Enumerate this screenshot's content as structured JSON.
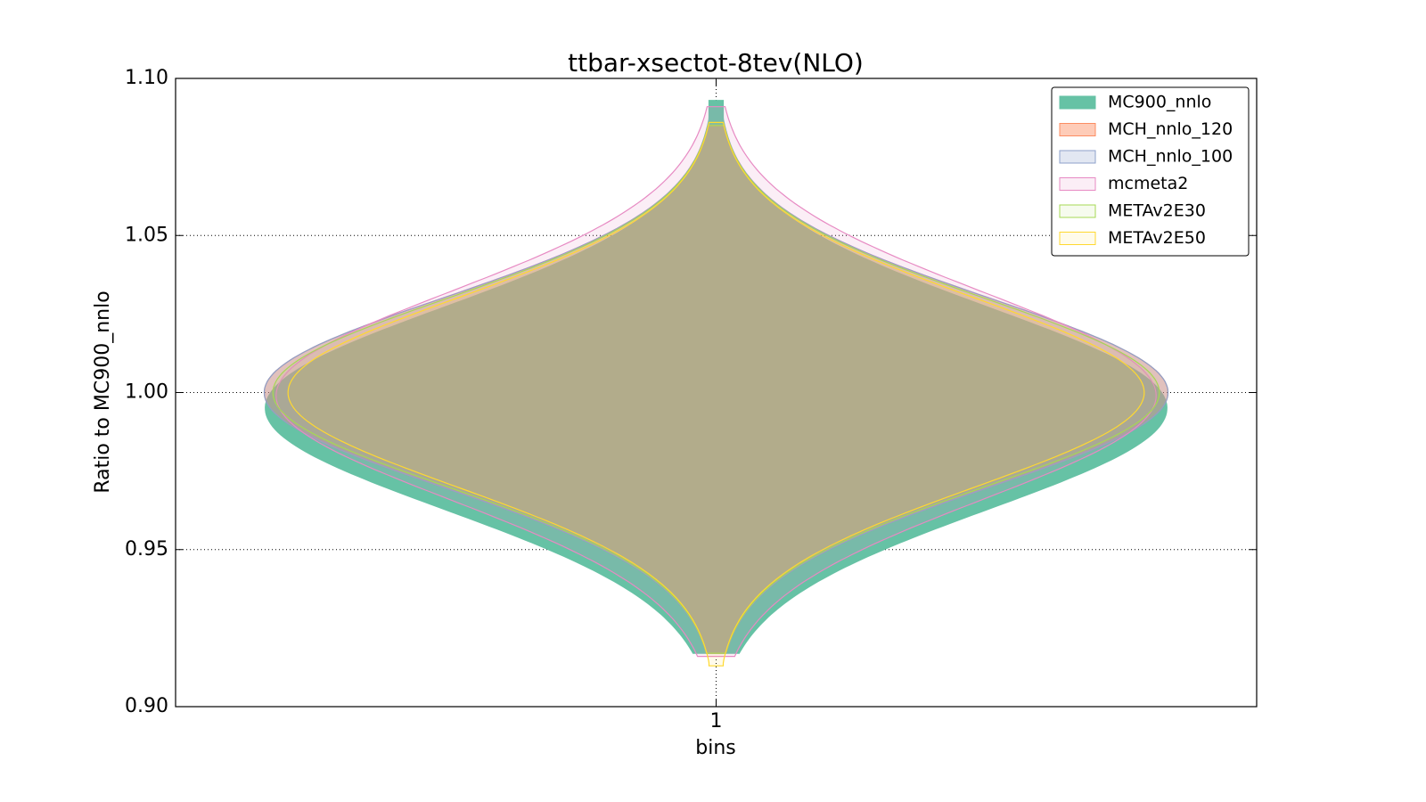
{
  "chart_data": {
    "type": "violin",
    "title": "ttbar-xsectot-8tev(NLO)",
    "x_label": "bins",
    "y_label": "Ratio to MC900_nnlo",
    "x": [
      1
    ],
    "xlim": [
      0.5,
      1.5
    ],
    "xticks": [
      1
    ],
    "ylim": [
      0.9,
      1.1
    ],
    "yticks": [
      {
        "value": 0.9,
        "label": "0.90"
      },
      {
        "value": 0.95,
        "label": "0.95"
      },
      {
        "value": 1.0,
        "label": "1.00"
      },
      {
        "value": 1.05,
        "label": "1.05"
      },
      {
        "value": 1.1,
        "label": "1.10"
      }
    ],
    "grid": true,
    "legend": "upper right",
    "series": [
      {
        "name": "MC900_nnlo",
        "color": "#66c2a5",
        "alpha": 1,
        "center": 0.995,
        "min": 0.917,
        "max": 1.093,
        "halfwidth": 0.417,
        "sd": 0.032
      },
      {
        "name": "MCH_nnlo_120",
        "color": "#fc8d62",
        "alpha": 0.45,
        "center": 1.0,
        "min": 0.917,
        "max": 1.085,
        "halfwidth": 0.418,
        "sd": 0.03
      },
      {
        "name": "MCH_nnlo_100",
        "color": "#8da0cb",
        "alpha": 0.25,
        "center": 1.0,
        "min": 0.917,
        "max": 1.085,
        "halfwidth": 0.418,
        "sd": 0.03
      },
      {
        "name": "mcmeta2",
        "color": "#e78ac3",
        "alpha": 0.15,
        "center": 0.999,
        "min": 0.916,
        "max": 1.091,
        "halfwidth": 0.407,
        "sd": 0.033
      },
      {
        "name": "METAv2E30",
        "color": "#a6d854",
        "alpha": 0.1,
        "center": 1.0,
        "min": 0.917,
        "max": 1.085,
        "halfwidth": 0.41,
        "sd": 0.03
      },
      {
        "name": "METAv2E50",
        "color": "#ffd92f",
        "alpha": 0.1,
        "center": 1.0,
        "min": 0.913,
        "max": 1.086,
        "halfwidth": 0.396,
        "sd": 0.03
      }
    ]
  }
}
